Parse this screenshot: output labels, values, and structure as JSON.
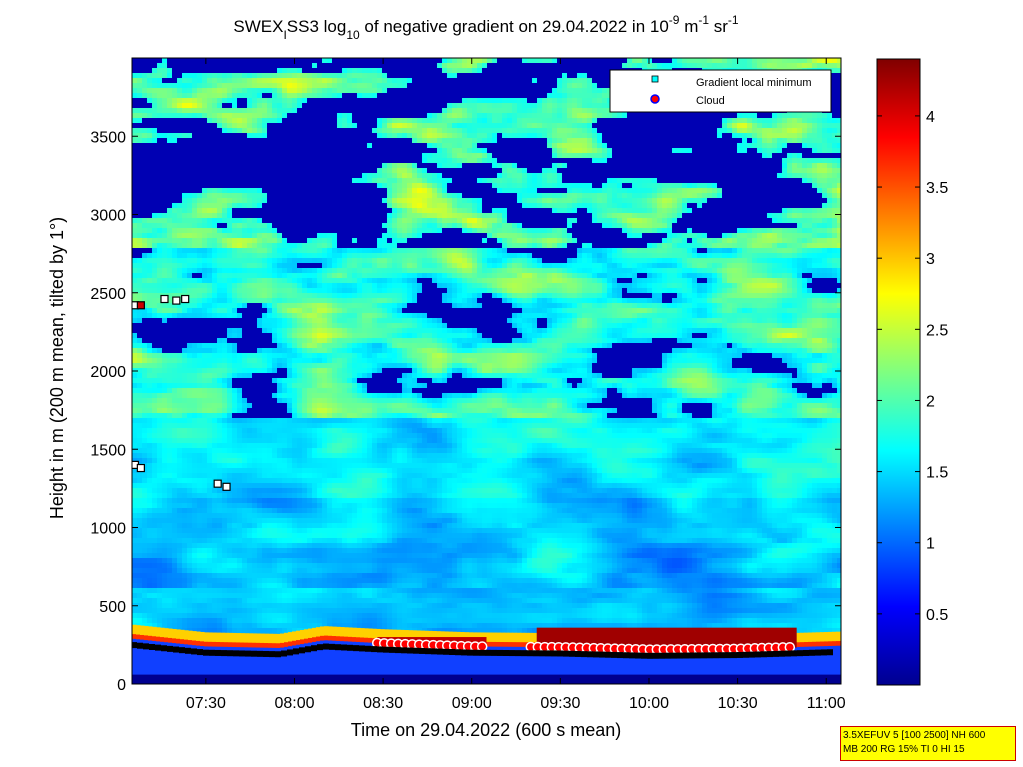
{
  "chart_data": {
    "type": "heatmap",
    "title_parts": {
      "a": "SWEX",
      "sub1": "I",
      "b": "SS3 log",
      "sub2": "10",
      "c": " of negative gradient on 29.04.2022 in 10",
      "sup1": "-9",
      "d": " m",
      "sup2": "-1",
      "e": " sr",
      "sup3": "-1"
    },
    "xlabel": "Time on 29.04.2022 (600 s mean)",
    "ylabel": "Height in m (200 m mean, tilted by 1°)",
    "xlim": [
      "07:05",
      "11:05"
    ],
    "ylim": [
      0,
      4000
    ],
    "x_ticks": [
      "07:30",
      "08:00",
      "08:30",
      "09:00",
      "09:30",
      "10:00",
      "10:30",
      "11:00"
    ],
    "y_ticks": [
      0,
      500,
      1000,
      1500,
      2000,
      2500,
      3000,
      3500
    ],
    "colorbar": {
      "colormap": "jet",
      "range": [
        0,
        4.4
      ],
      "ticks": [
        "0.5",
        "1",
        "1.5",
        "2",
        "2.5",
        "3",
        "3.5",
        "4"
      ]
    },
    "legend": {
      "placement": "top-right",
      "entries": [
        {
          "label": "Gradient local minimum",
          "marker": "square",
          "color": "#00ffff"
        },
        {
          "label": "Cloud",
          "marker": "circle",
          "color": "#ff0000"
        }
      ]
    },
    "surface_layer_top_m": [
      {
        "t": "07:05",
        "h": 250
      },
      {
        "t": "07:30",
        "h": 200
      },
      {
        "t": "07:55",
        "h": 190
      },
      {
        "t": "08:10",
        "h": 240
      },
      {
        "t": "08:30",
        "h": 220
      },
      {
        "t": "09:00",
        "h": 200
      },
      {
        "t": "09:30",
        "h": 195
      },
      {
        "t": "10:00",
        "h": 180
      },
      {
        "t": "10:30",
        "h": 185
      },
      {
        "t": "11:05",
        "h": 205
      }
    ],
    "gradient_minima": [
      {
        "t": "07:06",
        "h": 2420
      },
      {
        "t": "07:16",
        "h": 2460
      },
      {
        "t": "07:20",
        "h": 2450
      },
      {
        "t": "07:23",
        "h": 2460
      },
      {
        "t": "07:06",
        "h": 1400
      },
      {
        "t": "07:08",
        "h": 1380
      },
      {
        "t": "07:34",
        "h": 1280
      },
      {
        "t": "07:37",
        "h": 1260
      }
    ],
    "clouds": [
      {
        "t": "07:08",
        "h": 2420
      }
    ]
  },
  "info_lines": [
    "3.5XEFUV 5 [100 2500] NH 600",
    "MB 200 RG 15% TI 0 HI 15"
  ],
  "colors": {
    "background": "#ffffff",
    "info_box_fill": "#ffff00",
    "info_box_border": "#cc0000"
  }
}
